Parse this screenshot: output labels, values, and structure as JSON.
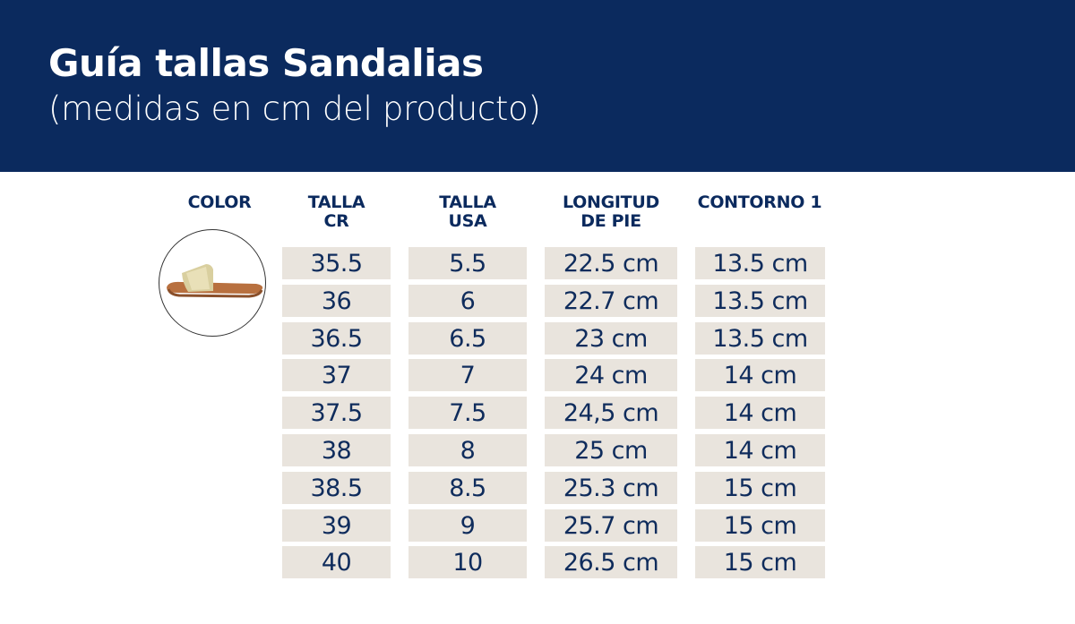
{
  "header": {
    "title": "Guía tallas Sandalias",
    "subtitle": "(medidas en cm del producto)"
  },
  "colors": {
    "banner": "#0b2a5e",
    "cell": "#e9e4dd",
    "text": "#0f2c5c"
  },
  "columns": [
    "COLOR",
    "TALLA\nCR",
    "TALLA\nUSA",
    "LONGITUD\nDE PIE",
    "CONTORNO 1"
  ],
  "product_image": "gold-slide-sandal",
  "rows": [
    [
      "35.5",
      "5.5",
      "22.5 cm",
      "13.5 cm"
    ],
    [
      "36",
      "6",
      "22.7 cm",
      "13.5 cm"
    ],
    [
      "36.5",
      "6.5",
      "23 cm",
      "13.5 cm"
    ],
    [
      "37",
      "7",
      "24 cm",
      "14 cm"
    ],
    [
      "37.5",
      "7.5",
      "24,5 cm",
      "14 cm"
    ],
    [
      "38",
      "8",
      "25 cm",
      "14 cm"
    ],
    [
      "38.5",
      "8.5",
      "25.3 cm",
      "15 cm"
    ],
    [
      "39",
      "9",
      "25.7 cm",
      "15 cm"
    ],
    [
      "40",
      "10",
      "26.5 cm",
      "15 cm"
    ]
  ]
}
